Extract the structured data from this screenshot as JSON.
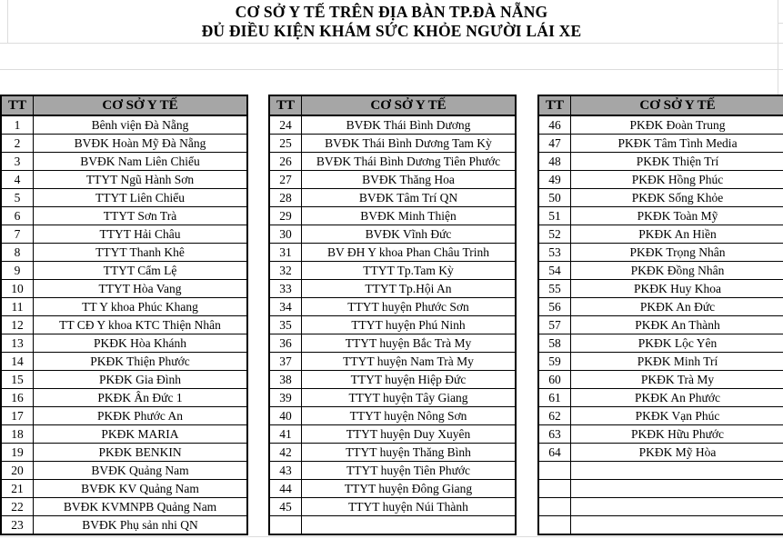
{
  "title": {
    "line1": "CƠ SỞ Y TẾ TRÊN ĐỊA BÀN TP.ĐÀ NẴNG",
    "line2": "ĐỦ ĐIỀU KIỆN KHÁM SỨC KHỎE NGƯỜI LÁI XE"
  },
  "columns": {
    "tt": "TT",
    "facility": "CƠ SỞ Y TẾ"
  },
  "colors": {
    "header_bg": "#a6a6a6",
    "table_border": "#000000",
    "gridline": "#dcdcdc"
  },
  "tables": [
    {
      "empty_rows": 0,
      "rows": [
        {
          "tt": "1",
          "name": "Bênh viện Đà Nẵng"
        },
        {
          "tt": "2",
          "name": "BVĐK Hoàn Mỹ Đà Nẵng"
        },
        {
          "tt": "3",
          "name": "BVĐK Nam Liên Chiểu"
        },
        {
          "tt": "4",
          "name": "TTYT Ngũ Hành Sơn"
        },
        {
          "tt": "5",
          "name": "TTYT Liên Chiểu"
        },
        {
          "tt": "6",
          "name": "TTYT Sơn Trà"
        },
        {
          "tt": "7",
          "name": "TTYT Hải Châu"
        },
        {
          "tt": "8",
          "name": "TTYT Thanh Khê"
        },
        {
          "tt": "9",
          "name": "TTYT Cẩm Lệ"
        },
        {
          "tt": "10",
          "name": "TTYT Hòa Vang"
        },
        {
          "tt": "11",
          "name": "TT Y khoa Phúc Khang"
        },
        {
          "tt": "12",
          "name": "TT CĐ Y khoa KTC Thiện Nhân"
        },
        {
          "tt": "13",
          "name": "PKĐK Hòa Khánh"
        },
        {
          "tt": "14",
          "name": "PKĐK Thiện Phước"
        },
        {
          "tt": "15",
          "name": "PKĐK Gia Đình"
        },
        {
          "tt": "16",
          "name": "PKĐK Ân Đức 1"
        },
        {
          "tt": "17",
          "name": "PKĐK Phước An"
        },
        {
          "tt": "18",
          "name": "PKĐK MARIA"
        },
        {
          "tt": "19",
          "name": "PKĐK BENKIN"
        },
        {
          "tt": "20",
          "name": "BVĐK Quảng Nam"
        },
        {
          "tt": "21",
          "name": "BVĐK KV Quảng Nam"
        },
        {
          "tt": "22",
          "name": "BVĐK KVMNPB Quảng Nam"
        },
        {
          "tt": "23",
          "name": "BVĐK Phụ sản nhi QN"
        }
      ]
    },
    {
      "empty_rows": 1,
      "rows": [
        {
          "tt": "24",
          "name": "BVĐK Thái Bình Dương"
        },
        {
          "tt": "25",
          "name": "BVĐK Thái Bình Dương Tam Kỳ"
        },
        {
          "tt": "26",
          "name": "BVĐK Thái Bình Dương Tiên Phước"
        },
        {
          "tt": "27",
          "name": "BVĐK Thăng Hoa"
        },
        {
          "tt": "28",
          "name": "BVĐK Tâm Trí QN"
        },
        {
          "tt": "29",
          "name": "BVĐK Minh Thiện"
        },
        {
          "tt": "30",
          "name": "BVĐK Vĩnh Đức"
        },
        {
          "tt": "31",
          "name": "BV ĐH Y khoa Phan Châu Trinh"
        },
        {
          "tt": "32",
          "name": "TTYT Tp.Tam Kỳ"
        },
        {
          "tt": "33",
          "name": "TTYT Tp.Hội An"
        },
        {
          "tt": "34",
          "name": "TTYT huyện Phước Sơn"
        },
        {
          "tt": "35",
          "name": "TTYT huyện Phú Ninh"
        },
        {
          "tt": "36",
          "name": "TTYT huyện Bắc Trà My"
        },
        {
          "tt": "37",
          "name": "TTYT huyện Nam Trà My"
        },
        {
          "tt": "38",
          "name": "TTYT huyện Hiệp Đức"
        },
        {
          "tt": "39",
          "name": "TTYT huyện Tây Giang"
        },
        {
          "tt": "40",
          "name": "TTYT huyện Nông Sơn"
        },
        {
          "tt": "41",
          "name": "TTYT huyện Duy Xuyên"
        },
        {
          "tt": "42",
          "name": "TTYT huyện Thăng Bình"
        },
        {
          "tt": "43",
          "name": "TTYT huyện Tiên Phước"
        },
        {
          "tt": "44",
          "name": "TTYT huyện Đông Giang"
        },
        {
          "tt": "45",
          "name": "TTYT huyện Núi Thành"
        }
      ]
    },
    {
      "empty_rows": 4,
      "rows": [
        {
          "tt": "46",
          "name": "PKĐK Đoàn Trung"
        },
        {
          "tt": "47",
          "name": "PKĐK Tâm Tình Media"
        },
        {
          "tt": "48",
          "name": "PKĐK Thiện Trí"
        },
        {
          "tt": "49",
          "name": "PKĐK Hồng Phúc"
        },
        {
          "tt": "50",
          "name": "PKĐK Sống Khỏe"
        },
        {
          "tt": "51",
          "name": "PKĐK Toàn Mỹ"
        },
        {
          "tt": "52",
          "name": "PKĐK An Hiền"
        },
        {
          "tt": "53",
          "name": "PKĐK Trọng Nhân"
        },
        {
          "tt": "54",
          "name": "PKĐK Đồng Nhân"
        },
        {
          "tt": "55",
          "name": "PKĐK Huy Khoa"
        },
        {
          "tt": "56",
          "name": "PKĐK An Đức"
        },
        {
          "tt": "57",
          "name": "PKĐK An Thành"
        },
        {
          "tt": "58",
          "name": "PKĐK Lộc Yên"
        },
        {
          "tt": "59",
          "name": "PKĐK Minh Trí"
        },
        {
          "tt": "60",
          "name": "PKĐK Trà My"
        },
        {
          "tt": "61",
          "name": "PKĐK An Phước"
        },
        {
          "tt": "62",
          "name": "PKĐK Vạn Phúc"
        },
        {
          "tt": "63",
          "name": "PKĐK Hữu Phước"
        },
        {
          "tt": "64",
          "name": "PKĐK Mỹ Hòa"
        }
      ]
    }
  ]
}
